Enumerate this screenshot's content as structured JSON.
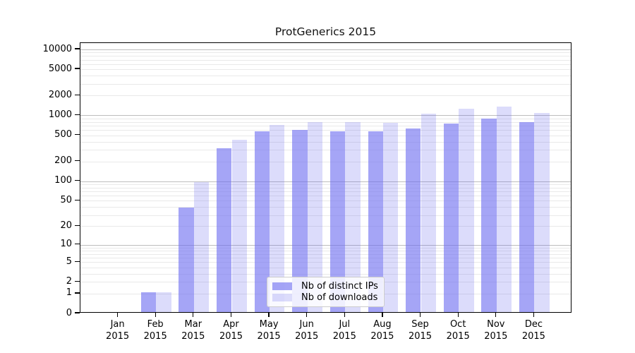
{
  "chart_data": {
    "type": "bar",
    "title": "ProtGenerics 2015",
    "categories": [
      "Jan 2015",
      "Feb 2015",
      "Mar 2015",
      "Apr 2015",
      "May 2015",
      "Jun 2015",
      "Jul 2015",
      "Aug 2015",
      "Sep 2015",
      "Oct 2015",
      "Nov 2015",
      "Dec 2015"
    ],
    "x_axis": {
      "months": [
        "Jan",
        "Feb",
        "Mar",
        "Apr",
        "May",
        "Jun",
        "Jul",
        "Aug",
        "Sep",
        "Oct",
        "Nov",
        "Dec"
      ],
      "year": "2015"
    },
    "series": [
      {
        "name": "Nb of distinct IPs",
        "color": "#a5a5f5",
        "fill": "rgba(110,110,240,0.62)",
        "values": [
          0,
          1,
          37,
          300,
          540,
          570,
          545,
          550,
          600,
          720,
          850,
          760
        ]
      },
      {
        "name": "Nb of downloads",
        "color": "#dcdcfa",
        "fill": "rgba(110,110,240,0.24)",
        "values": [
          0,
          1,
          93,
          410,
          690,
          750,
          760,
          740,
          1000,
          1200,
          1300,
          1030
        ]
      }
    ],
    "yscale": "log1p",
    "y_ticks": [
      10000,
      5000,
      2000,
      1000,
      500,
      200,
      100,
      50,
      20,
      10,
      5,
      2,
      1,
      0
    ],
    "ylim": [
      0,
      11500
    ],
    "ylim_log_max": 4.096,
    "grid": "on",
    "legend_position": "bottom-center",
    "colors": {
      "grid_minor": "#e9e9e9",
      "grid_major": "#bdbdbd",
      "axis": "#000000"
    }
  }
}
